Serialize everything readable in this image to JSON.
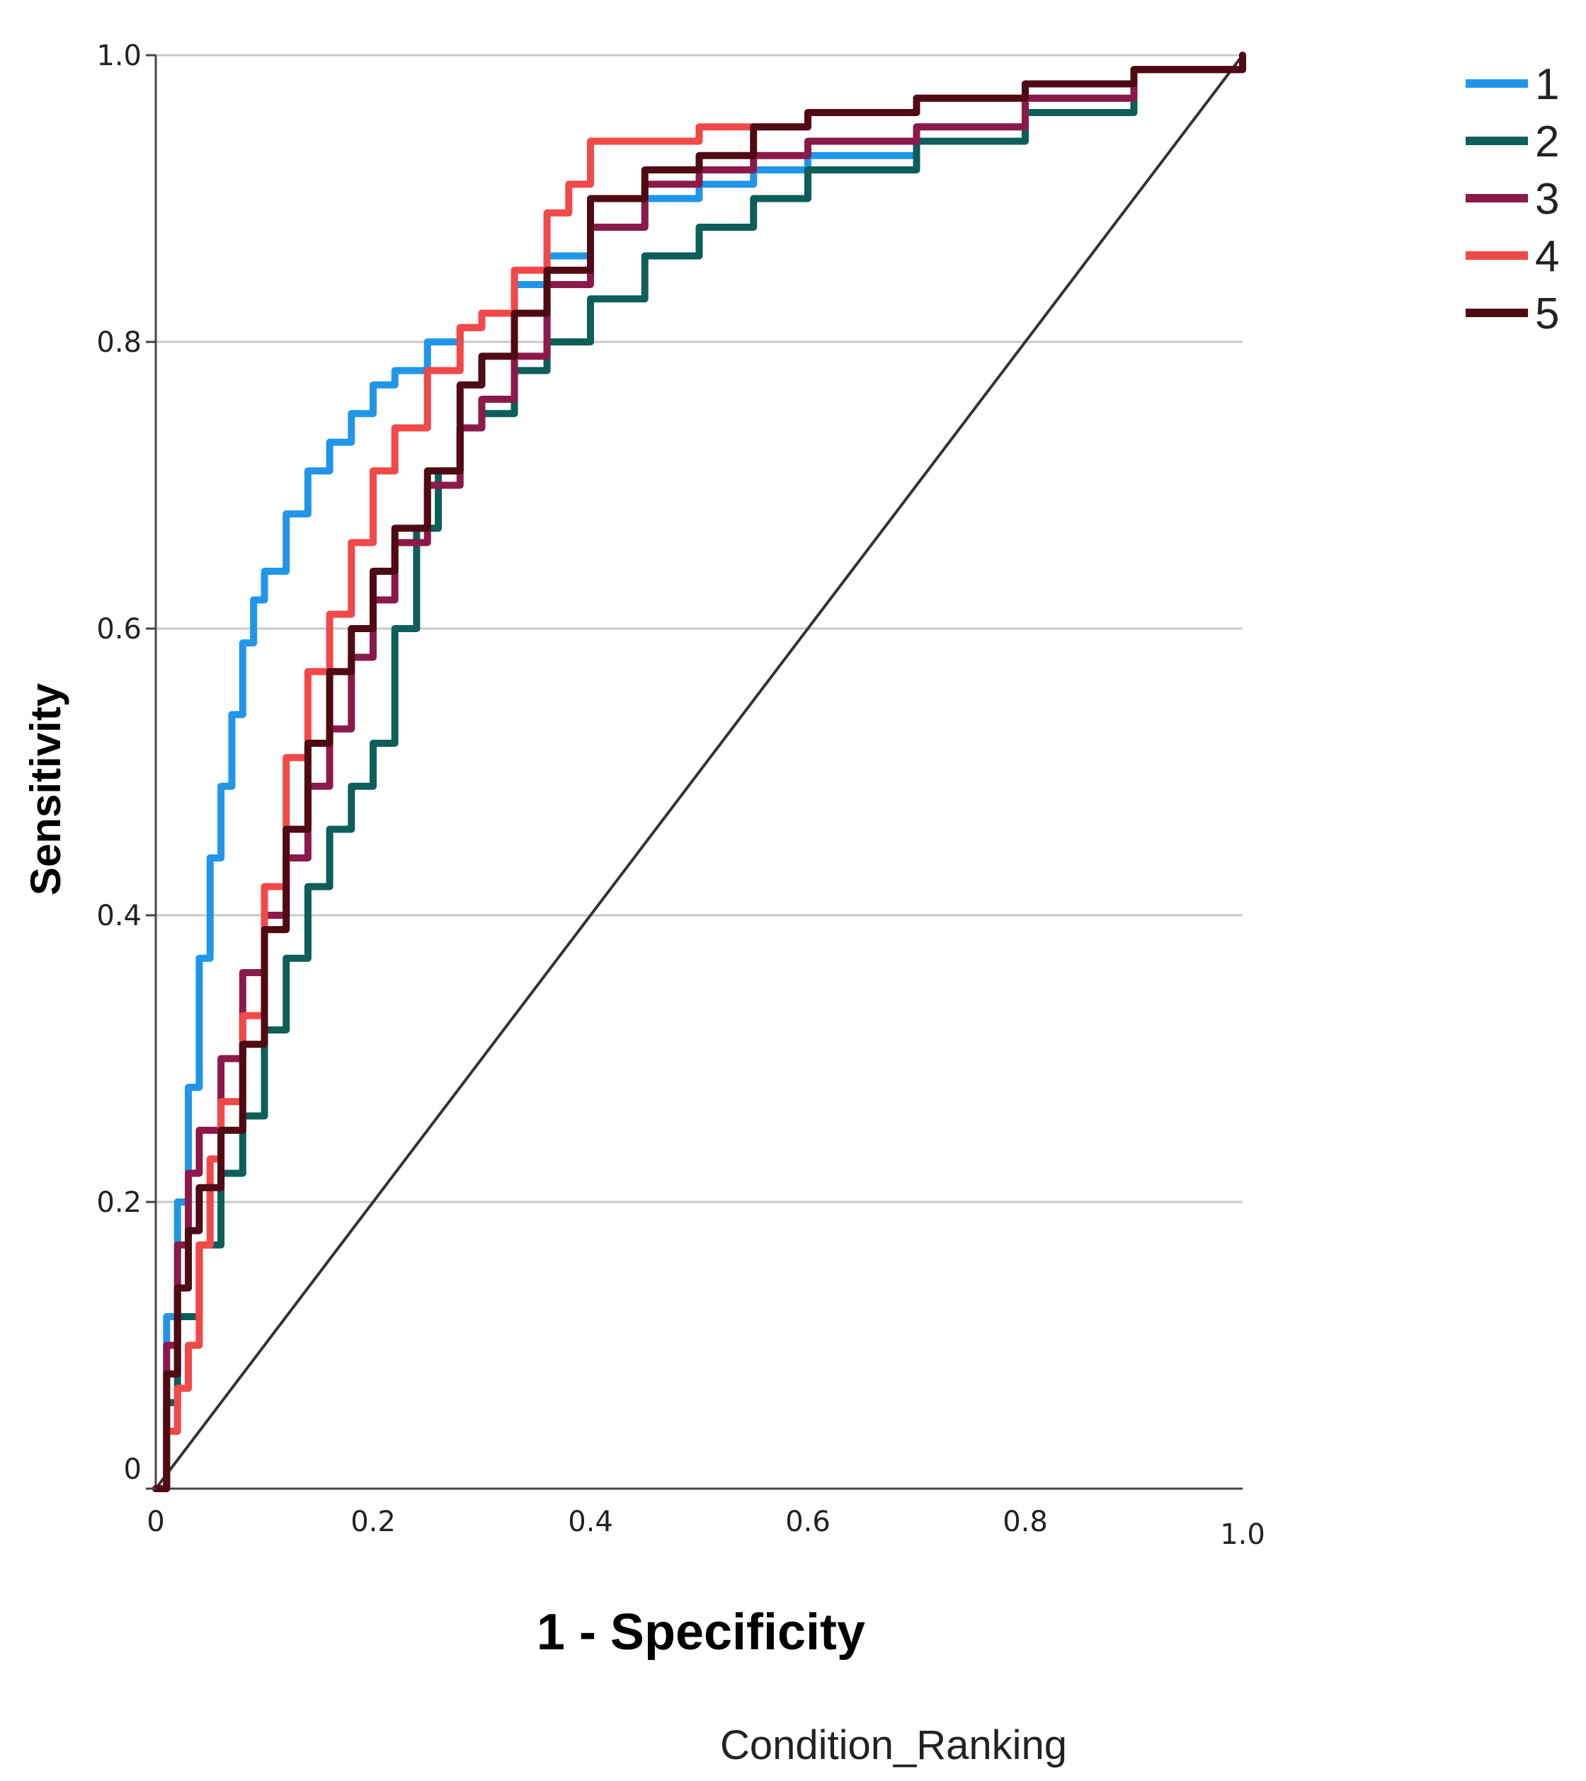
{
  "chart_data": {
    "type": "line",
    "title": "",
    "xlabel": "1 - Specificity",
    "ylabel": "Sensitivity",
    "legend_title": "Condition_Ranking",
    "xlim": [
      0,
      1
    ],
    "ylim": [
      0,
      1
    ],
    "x_ticks": [
      {
        "value": 0,
        "label": "0"
      },
      {
        "value": 0.2,
        "label": "0.2"
      },
      {
        "value": 0.4,
        "label": "0.4"
      },
      {
        "value": 0.6,
        "label": "0.6"
      },
      {
        "value": 0.8,
        "label": "0.8"
      },
      {
        "value": 1.0,
        "label": "1.0"
      }
    ],
    "y_ticks": [
      {
        "value": 0,
        "label": "0"
      },
      {
        "value": 0.2,
        "label": "0.2"
      },
      {
        "value": 0.4,
        "label": "0.4"
      },
      {
        "value": 0.6,
        "label": "0.6"
      },
      {
        "value": 0.8,
        "label": "0.8"
      },
      {
        "value": 1.0,
        "label": "1.0"
      }
    ],
    "grid": "horizontal",
    "legend_position": "top-right",
    "reference_line": {
      "x": [
        0,
        1
      ],
      "y": [
        0,
        1
      ],
      "color": "#333333"
    },
    "series": [
      {
        "name": "1",
        "color": "#2196e8",
        "x": [
          0,
          0.01,
          0.02,
          0.03,
          0.04,
          0.05,
          0.06,
          0.07,
          0.08,
          0.09,
          0.1,
          0.12,
          0.14,
          0.16,
          0.18,
          0.2,
          0.22,
          0.25,
          0.28,
          0.3,
          0.33,
          0.36,
          0.4,
          0.45,
          0.5,
          0.55,
          0.6,
          0.7,
          0.8,
          0.9,
          1.0
        ],
        "y": [
          0,
          0.12,
          0.2,
          0.28,
          0.37,
          0.44,
          0.49,
          0.54,
          0.59,
          0.62,
          0.64,
          0.68,
          0.71,
          0.73,
          0.75,
          0.77,
          0.78,
          0.8,
          0.81,
          0.82,
          0.84,
          0.86,
          0.88,
          0.9,
          0.91,
          0.92,
          0.93,
          0.95,
          0.97,
          0.99,
          1.0
        ]
      },
      {
        "name": "2",
        "color": "#0e5e5a",
        "x": [
          0,
          0.01,
          0.02,
          0.04,
          0.06,
          0.08,
          0.1,
          0.12,
          0.14,
          0.16,
          0.18,
          0.2,
          0.22,
          0.24,
          0.26,
          0.28,
          0.3,
          0.33,
          0.36,
          0.4,
          0.45,
          0.5,
          0.55,
          0.6,
          0.7,
          0.8,
          0.9,
          1.0
        ],
        "y": [
          0,
          0.06,
          0.12,
          0.17,
          0.22,
          0.26,
          0.32,
          0.37,
          0.42,
          0.46,
          0.49,
          0.52,
          0.6,
          0.67,
          0.71,
          0.74,
          0.75,
          0.78,
          0.8,
          0.83,
          0.86,
          0.88,
          0.9,
          0.92,
          0.94,
          0.96,
          0.99,
          1.0
        ]
      },
      {
        "name": "3",
        "color": "#8b1a4a",
        "x": [
          0,
          0.01,
          0.02,
          0.03,
          0.04,
          0.06,
          0.08,
          0.1,
          0.12,
          0.14,
          0.16,
          0.18,
          0.2,
          0.22,
          0.25,
          0.28,
          0.3,
          0.33,
          0.36,
          0.4,
          0.45,
          0.5,
          0.55,
          0.6,
          0.7,
          0.8,
          0.9,
          1.0
        ],
        "y": [
          0,
          0.1,
          0.17,
          0.22,
          0.25,
          0.3,
          0.36,
          0.4,
          0.44,
          0.49,
          0.53,
          0.58,
          0.62,
          0.66,
          0.7,
          0.74,
          0.76,
          0.79,
          0.84,
          0.88,
          0.91,
          0.92,
          0.93,
          0.94,
          0.95,
          0.97,
          0.99,
          1.0
        ]
      },
      {
        "name": "4",
        "color": "#f24848",
        "x": [
          0,
          0.01,
          0.02,
          0.03,
          0.04,
          0.05,
          0.06,
          0.08,
          0.1,
          0.12,
          0.14,
          0.16,
          0.18,
          0.2,
          0.22,
          0.25,
          0.28,
          0.3,
          0.33,
          0.36,
          0.38,
          0.4,
          0.45,
          0.5,
          0.6,
          0.7,
          0.8,
          0.9,
          1.0
        ],
        "y": [
          0,
          0.04,
          0.07,
          0.1,
          0.17,
          0.23,
          0.27,
          0.33,
          0.42,
          0.51,
          0.57,
          0.61,
          0.66,
          0.71,
          0.74,
          0.78,
          0.81,
          0.82,
          0.85,
          0.89,
          0.91,
          0.94,
          0.94,
          0.95,
          0.96,
          0.97,
          0.98,
          0.99,
          1.0
        ]
      },
      {
        "name": "5",
        "color": "#4f0a14",
        "x": [
          0,
          0.01,
          0.02,
          0.03,
          0.04,
          0.06,
          0.08,
          0.1,
          0.12,
          0.14,
          0.16,
          0.18,
          0.2,
          0.22,
          0.25,
          0.28,
          0.3,
          0.33,
          0.36,
          0.4,
          0.45,
          0.5,
          0.55,
          0.6,
          0.7,
          0.8,
          0.9,
          1.0
        ],
        "y": [
          0,
          0.08,
          0.14,
          0.18,
          0.21,
          0.25,
          0.31,
          0.39,
          0.46,
          0.52,
          0.57,
          0.6,
          0.64,
          0.67,
          0.71,
          0.77,
          0.79,
          0.82,
          0.85,
          0.9,
          0.92,
          0.93,
          0.95,
          0.96,
          0.97,
          0.98,
          0.99,
          1.0
        ]
      }
    ]
  }
}
